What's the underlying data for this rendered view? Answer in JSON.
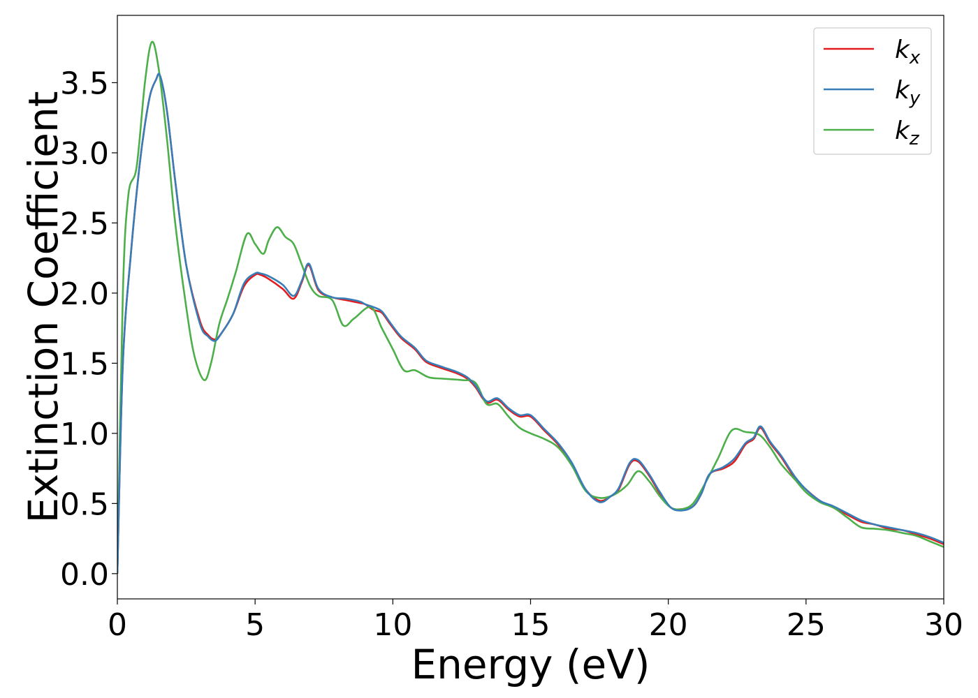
{
  "chart_data": {
    "type": "line",
    "title": "",
    "xlabel": "Energy (eV)",
    "ylabel": "Extinction Coefficient",
    "xlim": [
      0,
      30
    ],
    "ylim": [
      -0.18,
      3.98
    ],
    "xticks": [
      0,
      5,
      10,
      15,
      20,
      25,
      30
    ],
    "xtick_labels": [
      "0",
      "5",
      "10",
      "15",
      "20",
      "25",
      "30"
    ],
    "yticks": [
      0.0,
      0.5,
      1.0,
      1.5,
      2.0,
      2.5,
      3.0,
      3.5
    ],
    "ytick_labels": [
      "0.0",
      "0.5",
      "1.0",
      "1.5",
      "2.0",
      "2.5",
      "3.0",
      "3.5"
    ],
    "grid": false,
    "legend_position": "top-right",
    "series": [
      {
        "name": "k",
        "name_sub": "x",
        "color": "#e41a1c",
        "x": [
          0,
          0.2,
          0.5,
          0.8,
          1.0,
          1.2,
          1.4,
          1.55,
          1.8,
          2.1,
          2.5,
          3.0,
          3.3,
          3.55,
          3.8,
          4.2,
          4.6,
          5.0,
          5.2,
          5.5,
          6.0,
          6.4,
          6.7,
          6.95,
          7.3,
          7.8,
          8.3,
          8.8,
          9.0,
          9.3,
          9.6,
          9.9,
          10.3,
          10.8,
          11.2,
          11.7,
          12.3,
          12.7,
          13.0,
          13.4,
          13.8,
          14.2,
          14.6,
          15.0,
          15.5,
          16.0,
          16.5,
          17.0,
          17.5,
          17.9,
          18.2,
          18.6,
          18.9,
          19.3,
          19.7,
          20.1,
          20.5,
          20.9,
          21.2,
          21.5,
          22.0,
          22.4,
          22.8,
          23.1,
          23.35,
          23.7,
          24.1,
          24.6,
          25.0,
          25.5,
          26.0,
          26.5,
          27.0,
          27.5,
          28.0,
          28.5,
          29.0,
          29.5,
          30.0
        ],
        "y": [
          0.0,
          1.5,
          2.3,
          2.9,
          3.2,
          3.42,
          3.52,
          3.55,
          3.3,
          2.8,
          2.2,
          1.8,
          1.7,
          1.67,
          1.72,
          1.85,
          2.05,
          2.13,
          2.13,
          2.1,
          2.03,
          1.96,
          2.08,
          2.2,
          2.02,
          1.97,
          1.95,
          1.93,
          1.92,
          1.88,
          1.86,
          1.78,
          1.68,
          1.6,
          1.51,
          1.47,
          1.43,
          1.39,
          1.33,
          1.22,
          1.24,
          1.17,
          1.12,
          1.12,
          1.02,
          0.92,
          0.78,
          0.6,
          0.52,
          0.55,
          0.6,
          0.78,
          0.8,
          0.7,
          0.57,
          0.47,
          0.46,
          0.48,
          0.57,
          0.71,
          0.75,
          0.8,
          0.92,
          0.96,
          1.04,
          0.93,
          0.83,
          0.68,
          0.6,
          0.52,
          0.47,
          0.42,
          0.37,
          0.35,
          0.32,
          0.31,
          0.28,
          0.25,
          0.21
        ]
      },
      {
        "name": "k",
        "name_sub": "y",
        "color": "#377eb8",
        "x": [
          0,
          0.2,
          0.5,
          0.8,
          1.0,
          1.2,
          1.4,
          1.55,
          1.8,
          2.1,
          2.5,
          3.0,
          3.3,
          3.55,
          3.8,
          4.2,
          4.6,
          5.0,
          5.2,
          5.5,
          6.0,
          6.4,
          6.7,
          6.95,
          7.3,
          7.8,
          8.3,
          8.8,
          9.0,
          9.3,
          9.6,
          9.9,
          10.3,
          10.8,
          11.2,
          11.7,
          12.3,
          12.7,
          13.0,
          13.4,
          13.8,
          14.2,
          14.6,
          15.0,
          15.5,
          16.0,
          16.5,
          17.0,
          17.5,
          17.9,
          18.2,
          18.6,
          18.9,
          19.3,
          19.7,
          20.1,
          20.5,
          20.9,
          21.2,
          21.5,
          22.0,
          22.4,
          22.8,
          23.1,
          23.35,
          23.7,
          24.1,
          24.6,
          25.0,
          25.5,
          26.0,
          26.5,
          27.0,
          27.5,
          28.0,
          28.5,
          29.0,
          29.5,
          30.0
        ],
        "y": [
          0.0,
          1.5,
          2.3,
          2.9,
          3.2,
          3.42,
          3.52,
          3.55,
          3.3,
          2.8,
          2.2,
          1.78,
          1.69,
          1.66,
          1.72,
          1.85,
          2.07,
          2.14,
          2.14,
          2.12,
          2.06,
          1.98,
          2.09,
          2.21,
          2.03,
          1.97,
          1.96,
          1.94,
          1.92,
          1.9,
          1.87,
          1.79,
          1.69,
          1.61,
          1.52,
          1.48,
          1.44,
          1.4,
          1.34,
          1.23,
          1.25,
          1.18,
          1.13,
          1.13,
          1.03,
          0.93,
          0.79,
          0.6,
          0.51,
          0.55,
          0.61,
          0.79,
          0.81,
          0.71,
          0.58,
          0.47,
          0.45,
          0.48,
          0.57,
          0.71,
          0.76,
          0.82,
          0.93,
          0.97,
          1.05,
          0.94,
          0.84,
          0.69,
          0.6,
          0.52,
          0.48,
          0.43,
          0.38,
          0.35,
          0.33,
          0.31,
          0.29,
          0.26,
          0.22
        ]
      },
      {
        "name": "k",
        "name_sub": "z",
        "color": "#4daf4a",
        "x": [
          0,
          0.2,
          0.4,
          0.7,
          1.0,
          1.25,
          1.5,
          1.8,
          2.1,
          2.5,
          2.8,
          3.15,
          3.4,
          3.7,
          4.0,
          4.3,
          4.7,
          5.0,
          5.3,
          5.5,
          5.8,
          6.1,
          6.4,
          6.7,
          7.0,
          7.3,
          7.8,
          8.2,
          8.6,
          9.2,
          9.6,
          10.0,
          10.4,
          10.8,
          11.3,
          11.8,
          12.5,
          13.0,
          13.4,
          13.8,
          14.2,
          14.6,
          15.0,
          15.5,
          16.0,
          16.5,
          17.0,
          17.5,
          18.0,
          18.5,
          18.9,
          19.3,
          19.7,
          20.1,
          20.5,
          20.9,
          21.3,
          21.8,
          22.3,
          22.8,
          23.3,
          23.7,
          24.1,
          24.6,
          25.0,
          25.5,
          26.0,
          26.5,
          27.0,
          27.5,
          28.0,
          28.5,
          29.0,
          29.5,
          30.0
        ],
        "y": [
          0.0,
          2.0,
          2.7,
          2.9,
          3.5,
          3.79,
          3.6,
          3.1,
          2.5,
          1.9,
          1.55,
          1.38,
          1.5,
          1.78,
          1.96,
          2.15,
          2.42,
          2.35,
          2.28,
          2.38,
          2.47,
          2.4,
          2.35,
          2.2,
          2.05,
          1.98,
          1.95,
          1.77,
          1.82,
          1.9,
          1.75,
          1.6,
          1.45,
          1.45,
          1.4,
          1.39,
          1.38,
          1.36,
          1.21,
          1.21,
          1.12,
          1.04,
          1.0,
          0.96,
          0.9,
          0.77,
          0.59,
          0.54,
          0.56,
          0.63,
          0.73,
          0.66,
          0.55,
          0.47,
          0.46,
          0.5,
          0.63,
          0.82,
          1.02,
          1.01,
          0.99,
          0.9,
          0.78,
          0.67,
          0.58,
          0.51,
          0.47,
          0.4,
          0.33,
          0.32,
          0.31,
          0.29,
          0.27,
          0.23,
          0.19
        ]
      }
    ]
  }
}
